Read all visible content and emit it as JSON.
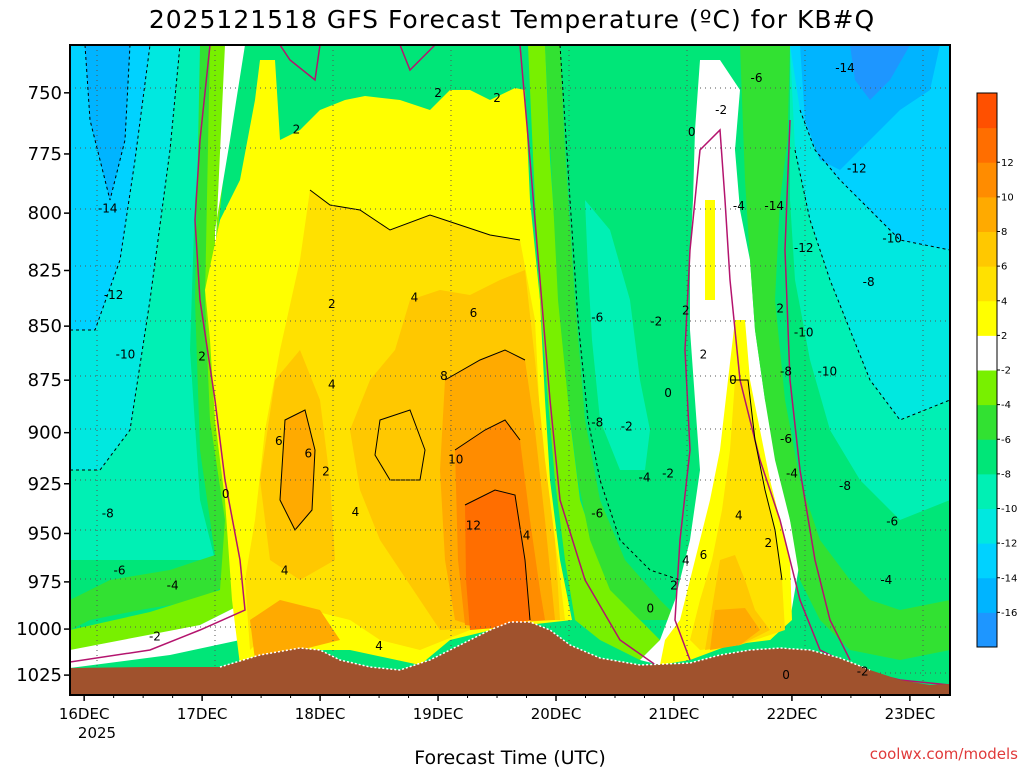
{
  "chart_data": {
    "type": "heatmap",
    "title": "2025121518 GFS Forecast Temperature (ºC) for KB#Q",
    "xlabel": "Forecast Time (UTC)",
    "ylabel": "",
    "x_ticks": [
      "16DEC",
      "17DEC",
      "18DEC",
      "19DEC",
      "20DEC",
      "21DEC",
      "22DEC",
      "23DEC"
    ],
    "x_year_label": "2025",
    "x_range_days": [
      -0.12,
      7.34
    ],
    "y_ticks": [
      750,
      775,
      800,
      825,
      850,
      875,
      900,
      925,
      950,
      975,
      1000,
      1025
    ],
    "y_range_hpa": [
      731,
      1036
    ],
    "y_axis": "inverted pressure (hPa)",
    "colorbar": {
      "levels": [
        -18,
        -16,
        -14,
        -12,
        -10,
        -8,
        -6,
        -4,
        -2,
        2,
        4,
        6,
        8,
        10,
        12,
        14
      ],
      "labels": [
        -16,
        -14,
        -12,
        -10,
        -8,
        -6,
        -4,
        -2,
        2,
        4,
        6,
        8,
        10,
        12
      ],
      "colors": [
        "#1e96ff",
        "#00b4ff",
        "#00d2ff",
        "#00e8e0",
        "#00f0b4",
        "#00e678",
        "#32e132",
        "#78f000",
        "#ffffff",
        "#ffff00",
        "#ffe100",
        "#ffc800",
        "#ffaa00",
        "#ff8c00",
        "#ff6e00",
        "#ff5000"
      ]
    },
    "series": [
      {
        "name": "temperature_850hPa",
        "x_days": [
          0,
          0.5,
          1,
          1.5,
          2,
          2.5,
          3,
          3.5,
          4,
          4.5,
          5,
          5.5,
          6,
          6.5,
          7
        ],
        "values": [
          -12,
          -11,
          0,
          2,
          3,
          4,
          7,
          5,
          -6,
          -5,
          -2,
          2,
          -5,
          -9,
          -8
        ]
      },
      {
        "name": "temperature_925hPa",
        "x_days": [
          0,
          0.5,
          1,
          1.5,
          2,
          2.5,
          3,
          3.5,
          4,
          4.5,
          5,
          5.5,
          6,
          6.5,
          7
        ],
        "values": [
          -8,
          -6,
          0,
          6,
          2,
          3,
          10,
          8,
          -5,
          -4,
          -2,
          3,
          -3,
          -6,
          -7
        ]
      }
    ],
    "contour_labels": [
      {
        "text": "2",
        "x_days": 1.8,
        "p": 765
      },
      {
        "text": "2",
        "x_days": 3.0,
        "p": 750
      },
      {
        "text": "2",
        "x_days": 3.5,
        "p": 752
      },
      {
        "text": "-14",
        "x_days": 0.2,
        "p": 798
      },
      {
        "text": "-12",
        "x_days": 0.25,
        "p": 836
      },
      {
        "text": "-10",
        "x_days": 0.35,
        "p": 863
      },
      {
        "text": "-8",
        "x_days": 0.2,
        "p": 940
      },
      {
        "text": "-6",
        "x_days": 0.3,
        "p": 969
      },
      {
        "text": "-4",
        "x_days": 0.75,
        "p": 977
      },
      {
        "text": "-2",
        "x_days": 0.6,
        "p": 1004
      },
      {
        "text": "2",
        "x_days": 1.0,
        "p": 864
      },
      {
        "text": "0",
        "x_days": 1.2,
        "p": 930
      },
      {
        "text": "2",
        "x_days": 2.1,
        "p": 840
      },
      {
        "text": "4",
        "x_days": 2.1,
        "p": 877
      },
      {
        "text": "4",
        "x_days": 2.8,
        "p": 837
      },
      {
        "text": "6",
        "x_days": 3.3,
        "p": 844
      },
      {
        "text": "6",
        "x_days": 1.65,
        "p": 904
      },
      {
        "text": "6",
        "x_days": 1.9,
        "p": 910
      },
      {
        "text": "2",
        "x_days": 2.05,
        "p": 919
      },
      {
        "text": "4",
        "x_days": 2.3,
        "p": 939
      },
      {
        "text": "4",
        "x_days": 1.7,
        "p": 969
      },
      {
        "text": "4",
        "x_days": 2.5,
        "p": 1009
      },
      {
        "text": "8",
        "x_days": 3.05,
        "p": 873
      },
      {
        "text": "10",
        "x_days": 3.15,
        "p": 913
      },
      {
        "text": "12",
        "x_days": 3.3,
        "p": 946
      },
      {
        "text": "4",
        "x_days": 3.75,
        "p": 951
      },
      {
        "text": "-6",
        "x_days": 4.35,
        "p": 846
      },
      {
        "text": "-8",
        "x_days": 4.35,
        "p": 895
      },
      {
        "text": "-2",
        "x_days": 4.6,
        "p": 897
      },
      {
        "text": "-6",
        "x_days": 4.35,
        "p": 940
      },
      {
        "text": "-4",
        "x_days": 4.75,
        "p": 922
      },
      {
        "text": "-2",
        "x_days": 4.95,
        "p": 920
      },
      {
        "text": "0",
        "x_days": 4.8,
        "p": 989
      },
      {
        "text": "-2",
        "x_days": 4.85,
        "p": 848
      },
      {
        "text": "0",
        "x_days": 5.15,
        "p": 766
      },
      {
        "text": "-2",
        "x_days": 5.4,
        "p": 757
      },
      {
        "text": "-6",
        "x_days": 5.7,
        "p": 744
      },
      {
        "text": "2",
        "x_days": 5.1,
        "p": 843
      },
      {
        "text": "0",
        "x_days": 4.95,
        "p": 881
      },
      {
        "text": "2",
        "x_days": 5.25,
        "p": 863
      },
      {
        "text": "0",
        "x_days": 5.5,
        "p": 875
      },
      {
        "text": "2",
        "x_days": 5.0,
        "p": 977
      },
      {
        "text": "4",
        "x_days": 5.1,
        "p": 964
      },
      {
        "text": "6",
        "x_days": 5.25,
        "p": 961
      },
      {
        "text": "4",
        "x_days": 5.55,
        "p": 941
      },
      {
        "text": "2",
        "x_days": 5.8,
        "p": 955
      },
      {
        "text": "0",
        "x_days": 5.95,
        "p": 1025
      },
      {
        "text": "-4",
        "x_days": 5.55,
        "p": 797
      },
      {
        "text": "-14",
        "x_days": 5.85,
        "p": 797
      },
      {
        "text": "-14",
        "x_days": 6.45,
        "p": 740
      },
      {
        "text": "-12",
        "x_days": 6.55,
        "p": 781
      },
      {
        "text": "-12",
        "x_days": 6.1,
        "p": 815
      },
      {
        "text": "-10",
        "x_days": 6.85,
        "p": 811
      },
      {
        "text": "-8",
        "x_days": 6.65,
        "p": 830
      },
      {
        "text": "2",
        "x_days": 5.9,
        "p": 842
      },
      {
        "text": "-10",
        "x_days": 6.1,
        "p": 853
      },
      {
        "text": "-8",
        "x_days": 5.95,
        "p": 871
      },
      {
        "text": "-10",
        "x_days": 6.3,
        "p": 871
      },
      {
        "text": "-6",
        "x_days": 5.95,
        "p": 903
      },
      {
        "text": "-4",
        "x_days": 6.0,
        "p": 920
      },
      {
        "text": "-8",
        "x_days": 6.45,
        "p": 926
      },
      {
        "text": "-6",
        "x_days": 6.85,
        "p": 944
      },
      {
        "text": "-4",
        "x_days": 6.8,
        "p": 974
      },
      {
        "text": "-2",
        "x_days": 6.6,
        "p": 1023
      }
    ]
  },
  "credit": "coolwx.com/models"
}
